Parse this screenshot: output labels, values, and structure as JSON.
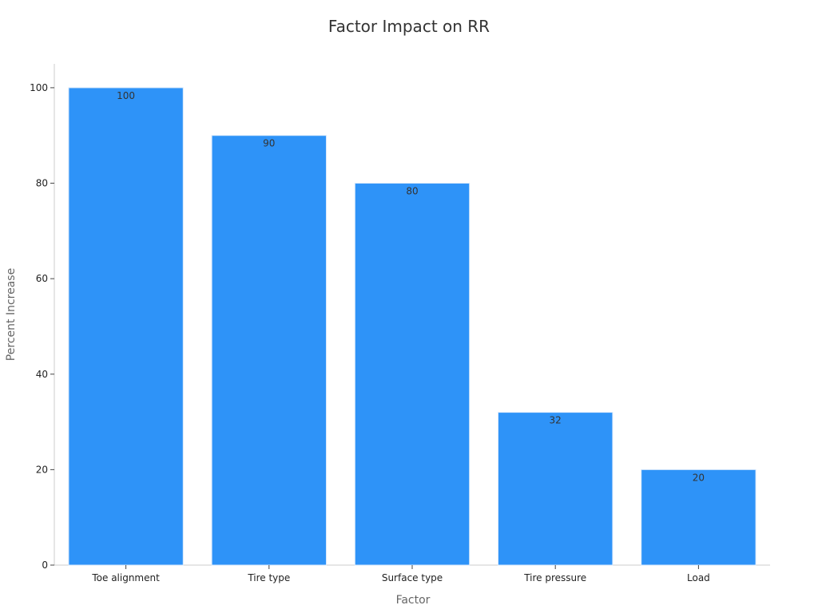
{
  "chart_data": {
    "type": "bar",
    "title": "Factor Impact on RR",
    "xlabel": "Factor",
    "ylabel": "Percent Increase",
    "categories": [
      "Toe alignment",
      "Tire type",
      "Surface type",
      "Tire pressure",
      "Load"
    ],
    "values": [
      100,
      90,
      80,
      32,
      20
    ],
    "ylim": [
      0,
      105
    ],
    "yticks": [
      0,
      20,
      40,
      60,
      80,
      100
    ],
    "grid": false,
    "legend": "none",
    "bar_color": "#2e93f8",
    "bar_edge_color": "#d9e9fb"
  }
}
